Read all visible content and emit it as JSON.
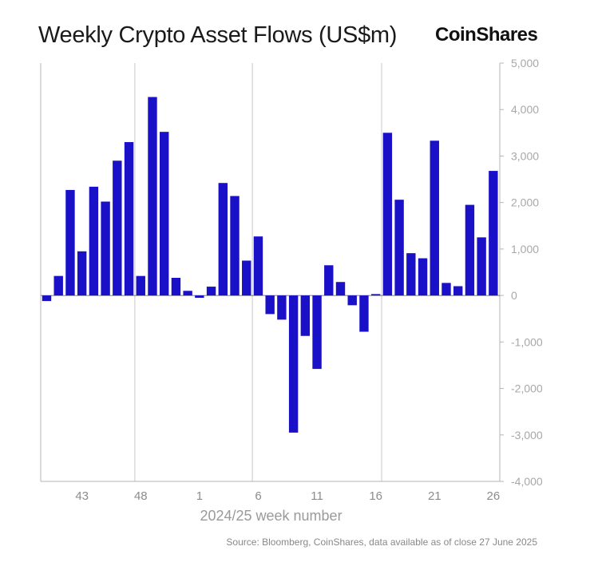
{
  "title": "Weekly Crypto Asset Flows (US$m)",
  "brand": "CoinShares",
  "source": "Source: Bloomberg, CoinShares, data available as of close 27 June 2025",
  "chart_data": {
    "type": "bar",
    "xlabel": "2024/25 week number",
    "ylabel": "",
    "ylim": [
      -4000,
      5000
    ],
    "yticks": [
      5000,
      4000,
      3000,
      2000,
      1000,
      0,
      -1000,
      -2000,
      -3000,
      -4000
    ],
    "ytick_labels": [
      "5,000",
      "4,000",
      "3,000",
      "2,000",
      "1,000",
      "0",
      "-1,000",
      "-2,000",
      "-3,000",
      "-4,000"
    ],
    "bar_color": "#1a10c8",
    "categories": [
      "40",
      "41",
      "42",
      "43",
      "44",
      "45",
      "46",
      "47",
      "48",
      "49",
      "50",
      "51",
      "52",
      "1",
      "2",
      "3",
      "4",
      "5",
      "6",
      "7",
      "8",
      "9",
      "10",
      "11",
      "12",
      "13",
      "14",
      "15",
      "16",
      "17",
      "18",
      "19",
      "20",
      "21",
      "22",
      "23",
      "24",
      "25",
      "26"
    ],
    "xtick_labels": [
      "43",
      "48",
      "1",
      "6",
      "11",
      "16",
      "21",
      "26"
    ],
    "values": [
      -120,
      420,
      2270,
      950,
      2340,
      2020,
      2900,
      3300,
      420,
      4270,
      3520,
      380,
      100,
      -50,
      190,
      2420,
      2140,
      750,
      1270,
      -400,
      -520,
      -2950,
      -870,
      -1580,
      650,
      290,
      -210,
      -780,
      30,
      3500,
      2060,
      910,
      800,
      3330,
      270,
      200,
      1950,
      1250,
      2680
    ],
    "grid": {
      "x_lines_at": [
        "48",
        "6",
        "17"
      ],
      "y": false
    }
  }
}
